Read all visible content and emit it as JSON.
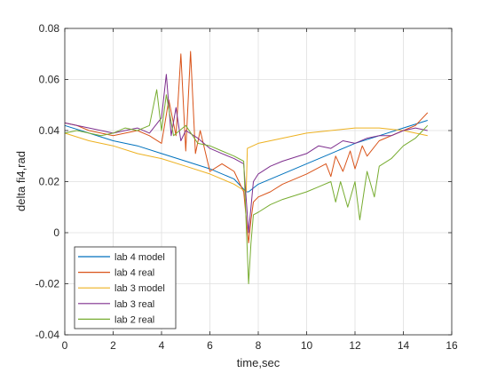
{
  "chart_data": {
    "type": "line",
    "title": "",
    "xlabel": "time,sec",
    "ylabel": "delta fi4,rad",
    "xlim": [
      0,
      16
    ],
    "ylim": [
      -0.04,
      0.08
    ],
    "xticks": [
      0,
      2,
      4,
      6,
      8,
      10,
      12,
      14,
      16
    ],
    "xtick_labels": [
      "0",
      "2",
      "4",
      "6",
      "8",
      "10",
      "12",
      "14",
      "16"
    ],
    "yticks": [
      -0.04,
      -0.02,
      0,
      0.02,
      0.04,
      0.06,
      0.08
    ],
    "ytick_labels": [
      "-0.04",
      "-0.02",
      "0",
      "0.02",
      "0.04",
      "0.06",
      "0.08"
    ],
    "grid": true,
    "legend_position": "bottom-left",
    "series": [
      {
        "name": "lab 4 model",
        "color": "#0072BD",
        "x": [
          0,
          1,
          2,
          3,
          4,
          5,
          6,
          7,
          7.5,
          7.6,
          8,
          9,
          10,
          11,
          12,
          13,
          14,
          15
        ],
        "y": [
          0.042,
          0.039,
          0.036,
          0.034,
          0.031,
          0.028,
          0.025,
          0.021,
          0.016,
          0.016,
          0.019,
          0.023,
          0.027,
          0.031,
          0.035,
          0.038,
          0.041,
          0.044
        ]
      },
      {
        "name": "lab 4 real",
        "color": "#D95319",
        "x": [
          0,
          0.5,
          1,
          1.5,
          2,
          2.5,
          3,
          3.5,
          4,
          4.3,
          4.6,
          4.8,
          5.0,
          5.2,
          5.4,
          5.6,
          6,
          6.5,
          7,
          7.4,
          7.6,
          7.7,
          7.8,
          8,
          8.5,
          9,
          10,
          10.8,
          11,
          11.2,
          11.5,
          11.8,
          12,
          12.3,
          12.5,
          13,
          14,
          14.5,
          15
        ],
        "y": [
          0.043,
          0.042,
          0.04,
          0.039,
          0.038,
          0.039,
          0.04,
          0.038,
          0.035,
          0.052,
          0.038,
          0.07,
          0.032,
          0.071,
          0.031,
          0.04,
          0.024,
          0.027,
          0.024,
          0.016,
          -0.004,
          0.005,
          0.012,
          0.014,
          0.016,
          0.019,
          0.023,
          0.027,
          0.022,
          0.03,
          0.024,
          0.032,
          0.025,
          0.034,
          0.03,
          0.036,
          0.04,
          0.042,
          0.047
        ]
      },
      {
        "name": "lab 3 model",
        "color": "#EDB120",
        "x": [
          0,
          1,
          2,
          3,
          4,
          5,
          6,
          7,
          7.5,
          7.55,
          8,
          9,
          10,
          11,
          12,
          13,
          14,
          15
        ],
        "y": [
          0.039,
          0.036,
          0.034,
          0.031,
          0.029,
          0.026,
          0.023,
          0.019,
          0.016,
          0.033,
          0.035,
          0.037,
          0.039,
          0.04,
          0.041,
          0.041,
          0.04,
          0.038
        ]
      },
      {
        "name": "lab 3 real",
        "color": "#7E2F8E",
        "x": [
          0,
          0.5,
          1,
          1.5,
          2,
          2.5,
          3,
          3.5,
          4,
          4.2,
          4.4,
          4.6,
          4.8,
          5,
          5.5,
          6,
          6.5,
          7,
          7.4,
          7.6,
          7.8,
          8,
          8.5,
          9,
          10,
          10.5,
          11,
          11.5,
          12,
          12.5,
          13,
          13.5,
          14,
          14.5,
          15
        ],
        "y": [
          0.043,
          0.042,
          0.041,
          0.04,
          0.039,
          0.04,
          0.041,
          0.039,
          0.045,
          0.062,
          0.038,
          0.049,
          0.036,
          0.04,
          0.037,
          0.033,
          0.031,
          0.029,
          0.027,
          0.0,
          0.02,
          0.023,
          0.026,
          0.028,
          0.031,
          0.034,
          0.033,
          0.036,
          0.035,
          0.037,
          0.038,
          0.038,
          0.04,
          0.041,
          0.04
        ]
      },
      {
        "name": "lab 2 real",
        "color": "#77AC30",
        "x": [
          0,
          0.5,
          1,
          1.5,
          2,
          2.5,
          3,
          3.5,
          3.8,
          4.0,
          4.2,
          4.5,
          5,
          5.5,
          6,
          6.5,
          7,
          7.4,
          7.6,
          7.7,
          7.8,
          8,
          8.5,
          9,
          10,
          10.5,
          11,
          11.2,
          11.4,
          11.7,
          12,
          12.2,
          12.5,
          12.8,
          13,
          13.5,
          14,
          14.5,
          15
        ],
        "y": [
          0.039,
          0.04,
          0.039,
          0.038,
          0.039,
          0.041,
          0.04,
          0.042,
          0.056,
          0.04,
          0.054,
          0.038,
          0.042,
          0.035,
          0.034,
          0.032,
          0.03,
          0.028,
          -0.02,
          -0.004,
          0.007,
          0.008,
          0.011,
          0.013,
          0.016,
          0.018,
          0.02,
          0.012,
          0.02,
          0.01,
          0.02,
          0.005,
          0.024,
          0.014,
          0.026,
          0.029,
          0.034,
          0.037,
          0.042
        ]
      }
    ]
  }
}
